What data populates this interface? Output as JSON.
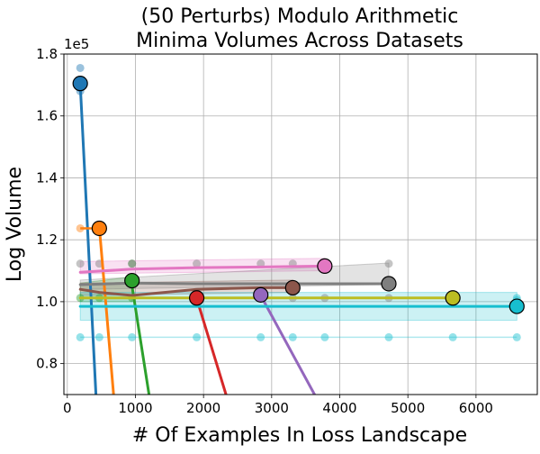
{
  "chart_data": {
    "type": "line",
    "title_lines": [
      "(50 Perturbs) Modulo Arithmetic",
      "Minima Volumes Across Datasets"
    ],
    "xlabel": "# Of Examples In Loss Landscape",
    "ylabel": "Log Volume",
    "offset_label": "1e5",
    "xlim": [
      -50,
      6900
    ],
    "ylim": [
      0.7,
      1.8
    ],
    "grid": true,
    "legend": "none",
    "x_ticks": [
      0,
      1000,
      2000,
      3000,
      4000,
      5000,
      6000
    ],
    "y_ticks": [
      0.8,
      1.0,
      1.2,
      1.4,
      1.6,
      1.8
    ],
    "y_tick_labels": [
      "0.8",
      "1.0",
      "1.2",
      "1.4",
      "1.6",
      "1.8"
    ],
    "series": [
      {
        "name": "blue",
        "color": "#1f77b4",
        "band": null,
        "trend": {
          "x": [
            190,
            420
          ],
          "y": [
            1.7,
            0.7
          ]
        },
        "faint_points": [
          {
            "x": 190,
            "y": 1.755
          },
          {
            "x": 190,
            "y": 1.69
          },
          {
            "x": 190,
            "y": 1.68
          }
        ],
        "marker": {
          "x": 190,
          "y": 1.705
        }
      },
      {
        "name": "orange",
        "color": "#ff7f0e",
        "band": null,
        "trend": {
          "x": [
            470,
            680
          ],
          "y": [
            1.24,
            0.7
          ]
        },
        "faint_points": [
          {
            "x": 190,
            "y": 1.237
          },
          {
            "x": 470,
            "y": 1.237
          }
        ],
        "flat_line": {
          "x": [
            190,
            470
          ],
          "y": [
            1.237,
            1.237
          ]
        },
        "marker": {
          "x": 470,
          "y": 1.237
        }
      },
      {
        "name": "green",
        "color": "#2ca02c",
        "band": {
          "x": [
            190,
            950
          ],
          "upper": [
            1.06,
            1.08
          ],
          "lower": [
            1.0,
            1.0
          ]
        },
        "trend": {
          "x": [
            950,
            1200
          ],
          "y": [
            1.05,
            0.7
          ]
        },
        "faint_points": [
          {
            "x": 190,
            "y": 1.012
          },
          {
            "x": 470,
            "y": 1.012
          },
          {
            "x": 950,
            "y": 1.012
          },
          {
            "x": 950,
            "y": 1.123
          }
        ],
        "marker": {
          "x": 950,
          "y": 1.068
        }
      },
      {
        "name": "red",
        "color": "#d62728",
        "band": null,
        "trend": {
          "x": [
            1900,
            2330
          ],
          "y": [
            1.01,
            0.7
          ]
        },
        "faint_points": [],
        "marker": {
          "x": 1900,
          "y": 1.012
        }
      },
      {
        "name": "purple",
        "color": "#9467bd",
        "band": null,
        "trend": {
          "x": [
            2840,
            3630
          ],
          "y": [
            1.02,
            0.7
          ]
        },
        "faint_points": [],
        "marker": {
          "x": 2840,
          "y": 1.022
        }
      },
      {
        "name": "brown",
        "color": "#8c564b",
        "band": {
          "x": [
            190,
            3310
          ],
          "upper": [
            1.06,
            1.07
          ],
          "lower": [
            1.02,
            1.03
          ]
        },
        "trend": {
          "x": [
            190,
            470,
            950,
            1900,
            2840,
            3310
          ],
          "y": [
            1.04,
            1.03,
            1.02,
            1.04,
            1.045,
            1.045
          ]
        },
        "faint_points": [],
        "marker": {
          "x": 3310,
          "y": 1.045
        }
      },
      {
        "name": "pink",
        "color": "#e377c2",
        "band": {
          "x": [
            190,
            3780
          ],
          "upper": [
            1.13,
            1.14
          ],
          "lower": [
            1.09,
            1.1
          ]
        },
        "trend": {
          "x": [
            190,
            950,
            1900,
            2840,
            3780
          ],
          "y": [
            1.095,
            1.105,
            1.11,
            1.112,
            1.115
          ]
        },
        "faint_points": [],
        "marker": {
          "x": 3780,
          "y": 1.115
        }
      },
      {
        "name": "gray",
        "color": "#7f7f7f",
        "band": {
          "x": [
            190,
            4720
          ],
          "upper": [
            1.07,
            1.125
          ],
          "lower": [
            1.04,
            1.055
          ]
        },
        "trend": {
          "x": [
            190,
            950,
            1900,
            2840,
            3780,
            4720
          ],
          "y": [
            1.055,
            1.06,
            1.058,
            1.058,
            1.058,
            1.058
          ]
        },
        "faint_points": [
          {
            "x": 190,
            "y": 1.123
          },
          {
            "x": 470,
            "y": 1.123
          },
          {
            "x": 950,
            "y": 1.123
          },
          {
            "x": 1900,
            "y": 1.123
          },
          {
            "x": 2840,
            "y": 1.123
          },
          {
            "x": 3310,
            "y": 1.123
          },
          {
            "x": 4720,
            "y": 1.123
          },
          {
            "x": 3310,
            "y": 1.012
          },
          {
            "x": 3780,
            "y": 1.012
          },
          {
            "x": 4720,
            "y": 1.012
          }
        ],
        "marker": {
          "x": 4720,
          "y": 1.058
        }
      },
      {
        "name": "olive",
        "color": "#bcbd22",
        "band": null,
        "trend": {
          "x": [
            190,
            1900,
            3780,
            5660
          ],
          "y": [
            1.012,
            1.012,
            1.012,
            1.012
          ]
        },
        "faint_points": [],
        "marker": {
          "x": 5660,
          "y": 1.012
        }
      },
      {
        "name": "cyan",
        "color": "#17becf",
        "band": {
          "x": [
            190,
            6600
          ],
          "upper": [
            1.03,
            1.03
          ],
          "lower": [
            0.94,
            0.94
          ]
        },
        "trend": {
          "x": [
            190,
            6600
          ],
          "y": [
            0.985,
            0.985
          ]
        },
        "faint_points": [
          {
            "x": 190,
            "y": 0.885
          },
          {
            "x": 470,
            "y": 0.885
          },
          {
            "x": 950,
            "y": 0.885
          },
          {
            "x": 1900,
            "y": 0.885
          },
          {
            "x": 2840,
            "y": 0.885
          },
          {
            "x": 3310,
            "y": 0.885
          },
          {
            "x": 3780,
            "y": 0.885
          },
          {
            "x": 4720,
            "y": 0.885
          },
          {
            "x": 5660,
            "y": 0.885
          },
          {
            "x": 6600,
            "y": 0.885
          },
          {
            "x": 6600,
            "y": 1.005
          },
          {
            "x": 6600,
            "y": 1.012
          }
        ],
        "faint_line": {
          "x": [
            190,
            6600
          ],
          "y": [
            0.885,
            0.885
          ]
        },
        "marker": {
          "x": 6600,
          "y": 0.985
        }
      }
    ]
  }
}
